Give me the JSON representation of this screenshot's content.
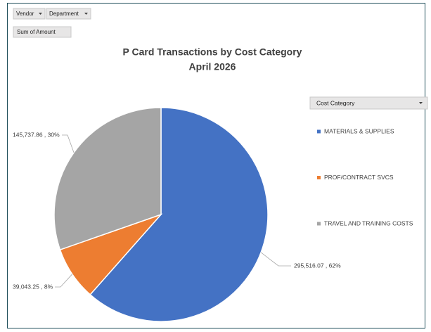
{
  "chart_data": {
    "type": "pie",
    "filters": [
      "Vendor",
      "Department"
    ],
    "value_field": "Sum of Amount",
    "title": "P Card Transactions by Cost Category",
    "subtitle": "April 2026",
    "legend_title": "Cost Category",
    "legend": "right",
    "categories": [
      "MATERIALS & SUPPLIES",
      "PROF/CONTRACT SVCS",
      "TRAVEL AND TRAINING COSTS"
    ],
    "values": [
      295516.07,
      39043.25,
      145737.86
    ],
    "value_labels": [
      "295,516.07 , 62%",
      "39,043.25 , 8%",
      "145,737.86 , 30%"
    ],
    "colors": [
      "#4472c4",
      "#ed7d31",
      "#a5a5a5"
    ]
  }
}
